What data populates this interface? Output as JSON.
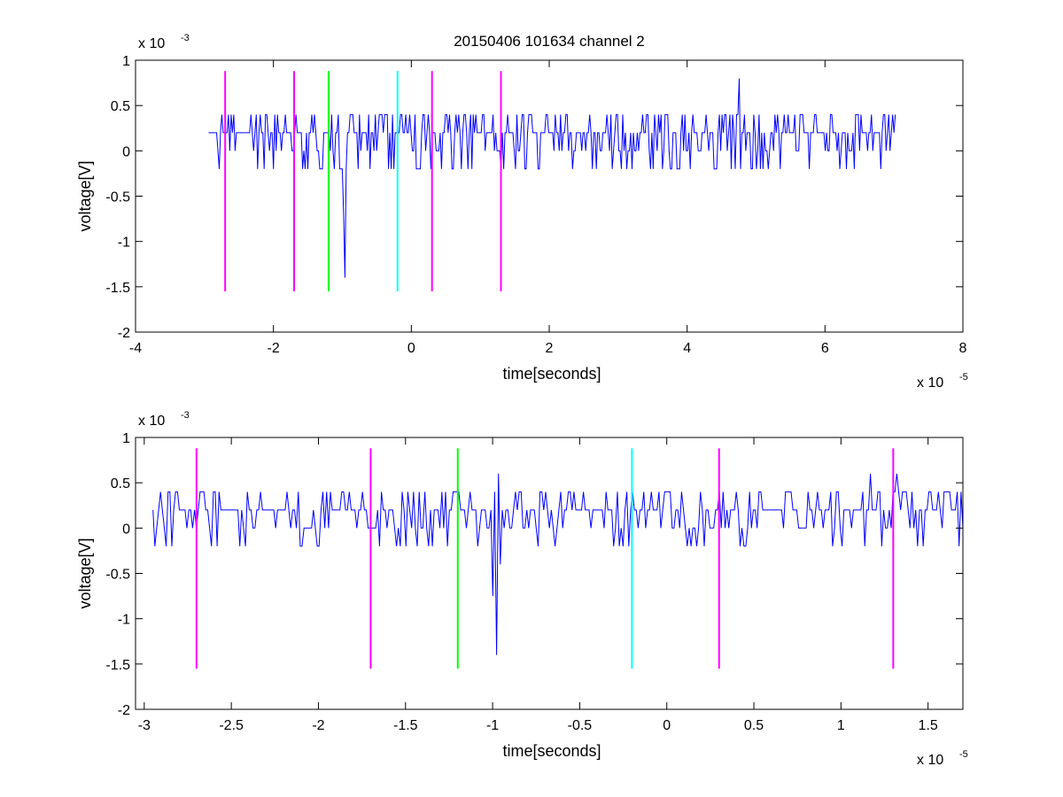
{
  "figure": {
    "title": "20150406 101634 channel 2",
    "colors": {
      "signal": "#0000ff",
      "marker_magenta": "#ff00ff",
      "marker_green": "#00ff00",
      "marker_cyan": "#00ffff",
      "axes": "#000000",
      "background": "#ffffff"
    }
  },
  "chart_data": [
    {
      "type": "line",
      "title": "20150406 101634 channel 2",
      "xlabel": "time[seconds]",
      "ylabel": "voltage[V]",
      "x_multiplier": {
        "base": "x 10",
        "exp": "-5"
      },
      "y_multiplier": {
        "base": "x 10",
        "exp": "-3"
      },
      "xlim": [
        -4,
        8
      ],
      "ylim": [
        -2,
        1
      ],
      "xticks": [
        -4,
        -2,
        0,
        2,
        4,
        6,
        8
      ],
      "xtick_labels": [
        "-4",
        "-2",
        "0",
        "2",
        "4",
        "6",
        "8"
      ],
      "yticks": [
        -2,
        -1.5,
        -1,
        -0.5,
        0,
        0.5,
        1
      ],
      "ytick_labels": [
        "-2",
        "-1.5",
        "-1",
        "-0.5",
        "0",
        "0.5",
        "1"
      ],
      "grid": false,
      "series": [
        {
          "color": "#0000ff",
          "x_range": [
            -2.94,
            7.02
          ],
          "noise_levels": [
            -0.2,
            0,
            0.2,
            0.4
          ],
          "baseline": 0.2,
          "events": [
            {
              "x": -0.96,
              "y": -1.4
            },
            {
              "x": -0.98,
              "y": -0.7
            },
            {
              "x": 4.76,
              "y": 0.8
            }
          ]
        }
      ],
      "markers": [
        {
          "x": -2.7,
          "color": "#ff00ff",
          "y_range": [
            -1.55,
            0.88
          ]
        },
        {
          "x": -1.7,
          "color": "#ff00ff",
          "y_range": [
            -1.55,
            0.88
          ]
        },
        {
          "x": -1.2,
          "color": "#00ff00",
          "y_range": [
            -1.55,
            0.88
          ]
        },
        {
          "x": -0.2,
          "color": "#00ffff",
          "y_range": [
            -1.55,
            0.88
          ]
        },
        {
          "x": 0.3,
          "color": "#ff00ff",
          "y_range": [
            -1.55,
            0.88
          ]
        },
        {
          "x": 1.3,
          "color": "#ff00ff",
          "y_range": [
            -1.55,
            0.88
          ]
        }
      ]
    },
    {
      "type": "line",
      "title": "",
      "xlabel": "time[seconds]",
      "ylabel": "voltage[V]",
      "x_multiplier": {
        "base": "x 10",
        "exp": "-5"
      },
      "y_multiplier": {
        "base": "x 10",
        "exp": "-3"
      },
      "xlim": [
        -3.05,
        1.7
      ],
      "ylim": [
        -2,
        1
      ],
      "xticks": [
        -3,
        -2.5,
        -2,
        -1.5,
        -1,
        -0.5,
        0,
        0.5,
        1,
        1.5
      ],
      "xtick_labels": [
        "-3",
        "-2.5",
        "-2",
        "-1.5",
        "-1",
        "-0.5",
        "0",
        "0.5",
        "1",
        "1.5"
      ],
      "yticks": [
        -2,
        -1.5,
        -1,
        -0.5,
        0,
        0.5,
        1
      ],
      "ytick_labels": [
        "-2",
        "-1.5",
        "-1",
        "-0.5",
        "0",
        "0.5",
        "1"
      ],
      "grid": false,
      "series": [
        {
          "color": "#0000ff",
          "x_range": [
            -2.95,
            1.7
          ],
          "noise_levels": [
            -0.2,
            0,
            0.2,
            0.4
          ],
          "baseline": 0.2,
          "events": [
            {
              "x": -1.0,
              "y": -0.75
            },
            {
              "x": -0.98,
              "y": -1.4
            },
            {
              "x": -0.96,
              "y": -0.4
            },
            {
              "x": -0.97,
              "y": 0.6
            },
            {
              "x": 1.17,
              "y": 0.6
            },
            {
              "x": 1.32,
              "y": 0.6
            }
          ]
        }
      ],
      "markers": [
        {
          "x": -2.7,
          "color": "#ff00ff",
          "y_range": [
            -1.55,
            0.88
          ]
        },
        {
          "x": -1.7,
          "color": "#ff00ff",
          "y_range": [
            -1.55,
            0.88
          ]
        },
        {
          "x": -1.2,
          "color": "#00ff00",
          "y_range": [
            -1.55,
            0.88
          ]
        },
        {
          "x": -0.2,
          "color": "#00ffff",
          "y_range": [
            -1.55,
            0.88
          ]
        },
        {
          "x": 0.3,
          "color": "#ff00ff",
          "y_range": [
            -1.55,
            0.88
          ]
        },
        {
          "x": 1.3,
          "color": "#ff00ff",
          "y_range": [
            -1.55,
            0.88
          ]
        }
      ]
    }
  ]
}
